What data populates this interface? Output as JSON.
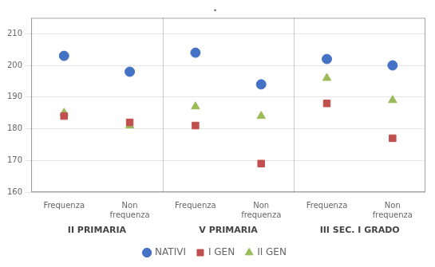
{
  "chart_data": {
    "type": "scatter",
    "title": ".",
    "categories": [
      "Frequenza",
      "Non\nfrequenza",
      "Frequenza",
      "Non\nfrequenza",
      "Frequenza",
      "Non\nfrequenza"
    ],
    "groups": [
      "II PRIMARIA",
      "V PRIMARIA",
      "III SEC. I GRADO"
    ],
    "series": [
      {
        "name": "NATIVI",
        "color": "#4472C4",
        "marker": "circle",
        "values": [
          203,
          198,
          204,
          194,
          202,
          200
        ]
      },
      {
        "name": "I GEN",
        "color": "#C0504D",
        "marker": "square",
        "values": [
          184,
          182,
          181,
          169,
          188,
          177
        ]
      },
      {
        "name": "II GEN",
        "color": "#9BBB59",
        "marker": "triangle",
        "values": [
          185,
          181,
          187,
          184,
          196,
          189
        ]
      }
    ],
    "ylim": [
      160,
      215
    ],
    "yticks": [
      160,
      170,
      180,
      190,
      200,
      210
    ],
    "grid": true,
    "legend": "bottom"
  }
}
